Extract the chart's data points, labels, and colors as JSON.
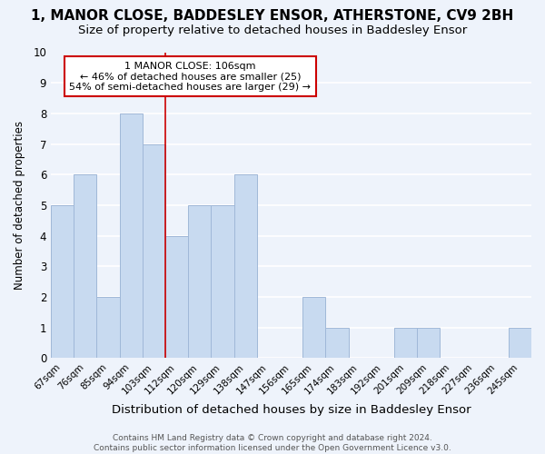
{
  "title": "1, MANOR CLOSE, BADDESLEY ENSOR, ATHERSTONE, CV9 2BH",
  "subtitle": "Size of property relative to detached houses in Baddesley Ensor",
  "xlabel": "Distribution of detached houses by size in Baddesley Ensor",
  "ylabel": "Number of detached properties",
  "categories": [
    "67sqm",
    "76sqm",
    "85sqm",
    "94sqm",
    "103sqm",
    "112sqm",
    "120sqm",
    "129sqm",
    "138sqm",
    "147sqm",
    "156sqm",
    "165sqm",
    "174sqm",
    "183sqm",
    "192sqm",
    "201sqm",
    "209sqm",
    "218sqm",
    "227sqm",
    "236sqm",
    "245sqm"
  ],
  "values": [
    5,
    6,
    2,
    8,
    7,
    4,
    5,
    5,
    6,
    0,
    0,
    2,
    1,
    0,
    0,
    1,
    1,
    0,
    0,
    0,
    1
  ],
  "bar_color": "#c8daf0",
  "bar_edge_color": "#a0b8d8",
  "vline_x_index": 4.5,
  "vline_color": "#cc0000",
  "annotation_line1": "1 MANOR CLOSE: 106sqm",
  "annotation_line2": "← 46% of detached houses are smaller (25)",
  "annotation_line3": "54% of semi-detached houses are larger (29) →",
  "annotation_box_color": "white",
  "annotation_box_edge_color": "#cc0000",
  "ylim": [
    0,
    10
  ],
  "yticks": [
    0,
    1,
    2,
    3,
    4,
    5,
    6,
    7,
    8,
    9,
    10
  ],
  "footer_line1": "Contains HM Land Registry data © Crown copyright and database right 2024.",
  "footer_line2": "Contains public sector information licensed under the Open Government Licence v3.0.",
  "background_color": "#eef3fb",
  "grid_color": "#ffffff",
  "title_fontsize": 11,
  "subtitle_fontsize": 9.5,
  "xlabel_fontsize": 9.5,
  "ylabel_fontsize": 8.5,
  "annotation_fontsize": 8,
  "footer_fontsize": 6.5
}
